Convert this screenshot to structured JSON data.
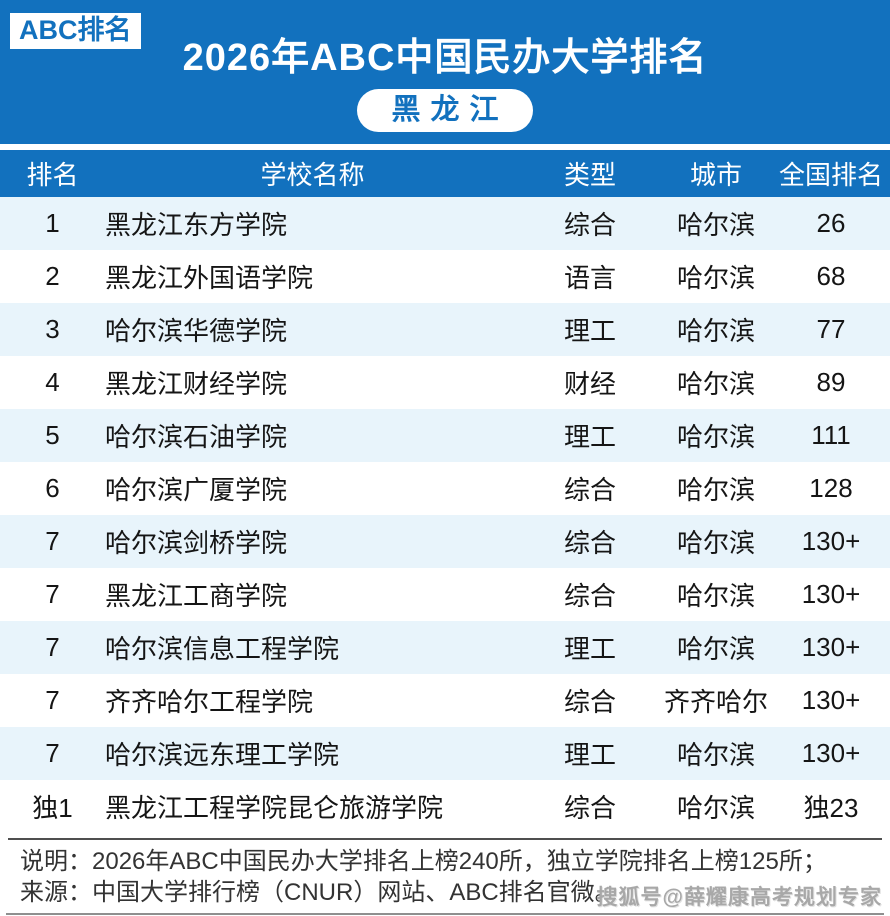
{
  "banner": {
    "badge": "ABC排名",
    "title": "2026年ABC中国民办大学排名",
    "region": "黑龙江"
  },
  "table": {
    "columns": [
      "排名",
      "学校名称",
      "类型",
      "城市",
      "全国排名"
    ],
    "rows": [
      {
        "rank": "1",
        "name": "黑龙江东方学院",
        "type": "综合",
        "city": "哈尔滨",
        "national": "26"
      },
      {
        "rank": "2",
        "name": "黑龙江外国语学院",
        "type": "语言",
        "city": "哈尔滨",
        "national": "68"
      },
      {
        "rank": "3",
        "name": "哈尔滨华德学院",
        "type": "理工",
        "city": "哈尔滨",
        "national": "77"
      },
      {
        "rank": "4",
        "name": "黑龙江财经学院",
        "type": "财经",
        "city": "哈尔滨",
        "national": "89"
      },
      {
        "rank": "5",
        "name": "哈尔滨石油学院",
        "type": "理工",
        "city": "哈尔滨",
        "national": "111"
      },
      {
        "rank": "6",
        "name": "哈尔滨广厦学院",
        "type": "综合",
        "city": "哈尔滨",
        "national": "128"
      },
      {
        "rank": "7",
        "name": "哈尔滨剑桥学院",
        "type": "综合",
        "city": "哈尔滨",
        "national": "130+"
      },
      {
        "rank": "7",
        "name": "黑龙江工商学院",
        "type": "综合",
        "city": "哈尔滨",
        "national": "130+"
      },
      {
        "rank": "7",
        "name": "哈尔滨信息工程学院",
        "type": "理工",
        "city": "哈尔滨",
        "national": "130+"
      },
      {
        "rank": "7",
        "name": "齐齐哈尔工程学院",
        "type": "综合",
        "city": "齐齐哈尔",
        "national": "130+"
      },
      {
        "rank": "7",
        "name": "哈尔滨远东理工学院",
        "type": "理工",
        "city": "哈尔滨",
        "national": "130+"
      },
      {
        "rank": "独1",
        "name": "黑龙江工程学院昆仑旅游学院",
        "type": "综合",
        "city": "哈尔滨",
        "national": "独23"
      }
    ]
  },
  "footer": {
    "note_line": "说明：2026年ABC中国民办大学排名上榜240所，独立学院排名上榜125所；",
    "source_line": "来源：中国大学排行榜（CNUR）网站、ABC排名官微。",
    "watermark": "搜狐号@薛耀康高考规划专家"
  },
  "colors": {
    "primary_blue": "#1271BE",
    "row_alt_blue": "#E8F4FB",
    "footer_text": "#333333",
    "watermark_gray": "#A8A8A8"
  }
}
